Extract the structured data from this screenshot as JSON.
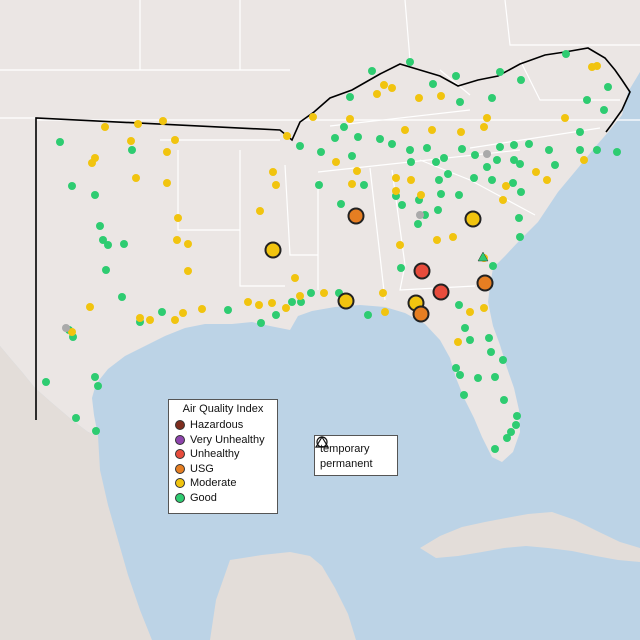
{
  "legend_aqi": {
    "title": "Air Quality Index",
    "items": [
      {
        "label": "Hazardous",
        "color": "#7e2d1e"
      },
      {
        "label": "Very Unhealthy",
        "color": "#8e44ad"
      },
      {
        "label": "Unhealthy",
        "color": "#e74c3c"
      },
      {
        "label": "USG",
        "color": "#e67e22"
      },
      {
        "label": "Moderate",
        "color": "#f1c40f"
      },
      {
        "label": "Good",
        "color": "#2ecc71"
      }
    ]
  },
  "legend_type": {
    "items": [
      {
        "label": "temporary",
        "icon": "circle-icon"
      },
      {
        "label": "permanent",
        "icon": "triangle-icon"
      }
    ]
  },
  "colors": {
    "water": "#bcd3e6",
    "land": "#ebe6e4",
    "state_border": "#ffffff",
    "region_border": "#000000",
    "no_data_marker": "#aaaaaa"
  }
}
